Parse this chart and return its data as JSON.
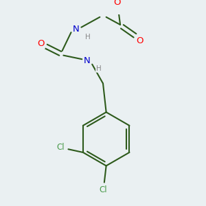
{
  "bg_color": "#eaf0f2",
  "bond_color": "#2d5a1b",
  "bond_width": 1.5,
  "atom_colors": {
    "O": "#ff0000",
    "N": "#0000cc",
    "Cl": "#4a9a4a",
    "C": "#2d5a1b",
    "H": "#888888"
  },
  "font_size": 8.5,
  "title": "",
  "scale": 100
}
